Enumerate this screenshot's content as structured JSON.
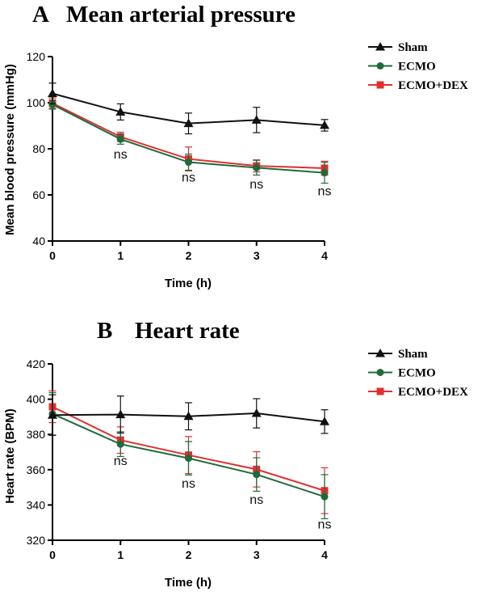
{
  "colors": {
    "sham": "#111111",
    "ecmo": "#1e6b3a",
    "ecmo_dex": "#e03030",
    "axis": "#000000"
  },
  "chart_data": [
    {
      "type": "line",
      "panel": "A",
      "title": "Mean arterial pressure",
      "xlabel": "Time (h)",
      "ylabel": "Mean blood pressure (mmHg)",
      "x": [
        0,
        1,
        2,
        3,
        4
      ],
      "xlim": [
        0,
        4
      ],
      "ylim": [
        40,
        120
      ],
      "xticks": [
        "0",
        "1",
        "2",
        "3",
        "4"
      ],
      "yticks": [
        "40",
        "60",
        "80",
        "100",
        "120"
      ],
      "grid": false,
      "legend_position": "top-right",
      "series": [
        {
          "name": "Sham",
          "marker": "triangle",
          "color": "#111111",
          "values": [
            104,
            96,
            91,
            92.5,
            90.2
          ],
          "errors": [
            4.5,
            3.5,
            4.5,
            5.5,
            2.5
          ]
        },
        {
          "name": "ECMO",
          "marker": "circle",
          "color": "#1e6b3a",
          "values": [
            99.2,
            84.2,
            74.2,
            71.8,
            69.6
          ],
          "errors": [
            2.0,
            2.2,
            3.5,
            3.2,
            4.5
          ]
        },
        {
          "name": "ECMO+DEX",
          "marker": "square",
          "color": "#e03030",
          "values": [
            99.8,
            85.2,
            75.6,
            72.6,
            71.6
          ],
          "errors": [
            2.2,
            2.0,
            5.2,
            2.6,
            3.0
          ]
        }
      ],
      "annotations": [
        {
          "x": 1,
          "y": 77.5,
          "text": "ns"
        },
        {
          "x": 2,
          "y": 67.5,
          "text": "ns"
        },
        {
          "x": 3,
          "y": 64.5,
          "text": "ns"
        },
        {
          "x": 4,
          "y": 61.5,
          "text": "ns"
        }
      ]
    },
    {
      "type": "line",
      "panel": "B",
      "title": "Heart rate",
      "xlabel": "Time (h)",
      "ylabel": "Heart rate (BPM)",
      "x": [
        0,
        1,
        2,
        3,
        4
      ],
      "xlim": [
        0,
        4
      ],
      "ylim": [
        320,
        420
      ],
      "xticks": [
        "0",
        "1",
        "2",
        "3",
        "4"
      ],
      "yticks": [
        "320",
        "340",
        "360",
        "380",
        "400",
        "420"
      ],
      "grid": false,
      "legend_position": "top-right",
      "series": [
        {
          "name": "Sham",
          "marker": "triangle",
          "color": "#111111",
          "values": [
            391,
            391.3,
            390.3,
            392,
            387.3
          ],
          "errors": [
            11.5,
            10.5,
            7.7,
            8.3,
            6.7
          ]
        },
        {
          "name": "ECMO",
          "marker": "circle",
          "color": "#1e6b3a",
          "values": [
            391.7,
            374.5,
            366.5,
            357.3,
            344.7
          ],
          "errors": [
            12,
            7,
            9.5,
            9.5,
            12.5
          ]
        },
        {
          "name": "ECMO+DEX",
          "marker": "square",
          "color": "#e03030",
          "values": [
            395.7,
            376.8,
            368.3,
            360.2,
            348.1
          ],
          "errors": [
            9,
            7.5,
            10.5,
            10,
            13
          ]
        }
      ],
      "annotations": [
        {
          "x": 1,
          "y": 365,
          "text": "ns"
        },
        {
          "x": 2,
          "y": 352,
          "text": "ns"
        },
        {
          "x": 3,
          "y": 343,
          "text": "ns"
        },
        {
          "x": 4,
          "y": 329,
          "text": "ns"
        }
      ]
    }
  ]
}
